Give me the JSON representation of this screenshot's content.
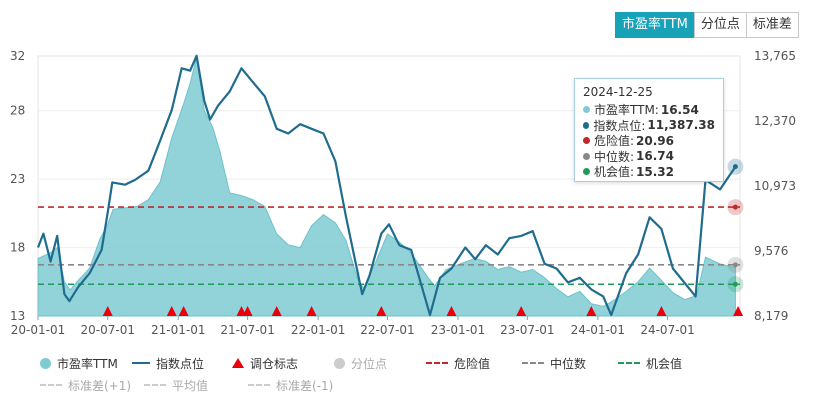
{
  "tabs": [
    {
      "label": "市盈率TTM",
      "active": true
    },
    {
      "label": "分位点",
      "active": false
    },
    {
      "label": "标准差",
      "active": false
    }
  ],
  "colors": {
    "pe_area": "#7fcbd4",
    "index_line": "#1f6c8e",
    "danger": "#c0282d",
    "median": "#888888",
    "opportunity": "#1e9b5a",
    "marker": "#e8000b",
    "tab_active": "#17a2b8"
  },
  "chart_data": {
    "type": "area",
    "y_left": {
      "ticks": [
        "32",
        "28",
        "23",
        "18",
        "13"
      ],
      "min": 13,
      "max": 32
    },
    "y_right": {
      "ticks": [
        "13,765",
        "12,370",
        "10,973",
        "9,576",
        "8,179"
      ],
      "min": 8179,
      "max": 13765
    },
    "x_ticks": [
      "20-01-01",
      "20-07-01",
      "21-01-01",
      "21-07-01",
      "22-01-01",
      "22-07-01",
      "23-01-01",
      "23-07-01",
      "24-01-01",
      "24-07-01"
    ],
    "x_start": "2020-01-01",
    "x_end": "2025-01-06",
    "reference_lines": {
      "danger": 20.96,
      "median": 16.74,
      "opportunity": 15.32
    },
    "pe_series": [
      [
        "2020-01-01",
        17.2
      ],
      [
        "2020-02-01",
        17.6
      ],
      [
        "2020-02-20",
        18.0
      ],
      [
        "2020-03-10",
        15.5
      ],
      [
        "2020-03-25",
        14.9
      ],
      [
        "2020-04-15",
        15.6
      ],
      [
        "2020-05-15",
        16.5
      ],
      [
        "2020-06-10",
        18.6
      ],
      [
        "2020-07-01",
        19.7
      ],
      [
        "2020-07-15",
        20.8
      ],
      [
        "2020-08-15",
        20.9
      ],
      [
        "2020-09-15",
        21.0
      ],
      [
        "2020-10-15",
        21.5
      ],
      [
        "2020-11-15",
        22.8
      ],
      [
        "2020-12-15",
        26.0
      ],
      [
        "2021-01-15",
        28.5
      ],
      [
        "2021-02-01",
        30.0
      ],
      [
        "2021-02-18",
        31.9
      ],
      [
        "2021-03-10",
        28.0
      ],
      [
        "2021-04-01",
        26.8
      ],
      [
        "2021-04-20",
        25.0
      ],
      [
        "2021-05-15",
        22.0
      ],
      [
        "2021-06-15",
        21.8
      ],
      [
        "2021-07-15",
        21.5
      ],
      [
        "2021-08-15",
        21.0
      ],
      [
        "2021-09-15",
        19.0
      ],
      [
        "2021-10-15",
        18.2
      ],
      [
        "2021-11-15",
        18.0
      ],
      [
        "2021-12-15",
        19.6
      ],
      [
        "2022-01-15",
        20.4
      ],
      [
        "2022-02-15",
        19.8
      ],
      [
        "2022-03-15",
        18.5
      ],
      [
        "2022-04-15",
        15.6
      ],
      [
        "2022-05-01",
        15.0
      ],
      [
        "2022-06-01",
        17.0
      ],
      [
        "2022-07-01",
        19.0
      ],
      [
        "2022-08-01",
        18.4
      ],
      [
        "2022-09-01",
        17.6
      ],
      [
        "2022-10-15",
        15.8
      ],
      [
        "2022-11-01",
        15.2
      ],
      [
        "2022-12-01",
        16.4
      ],
      [
        "2023-01-15",
        16.9
      ],
      [
        "2023-02-15",
        17.2
      ],
      [
        "2023-03-15",
        17.0
      ],
      [
        "2023-04-15",
        16.4
      ],
      [
        "2023-05-15",
        16.6
      ],
      [
        "2023-06-15",
        16.2
      ],
      [
        "2023-07-15",
        16.4
      ],
      [
        "2023-08-15",
        15.8
      ],
      [
        "2023-09-15",
        15.0
      ],
      [
        "2023-10-15",
        14.4
      ],
      [
        "2023-11-15",
        14.8
      ],
      [
        "2023-12-15",
        13.9
      ],
      [
        "2024-01-15",
        13.7
      ],
      [
        "2024-02-15",
        14.2
      ],
      [
        "2024-03-15",
        14.8
      ],
      [
        "2024-04-15",
        15.5
      ],
      [
        "2024-05-15",
        16.5
      ],
      [
        "2024-06-15",
        15.6
      ],
      [
        "2024-07-15",
        14.7
      ],
      [
        "2024-08-15",
        14.2
      ],
      [
        "2024-09-15",
        14.5
      ],
      [
        "2024-10-08",
        17.3
      ],
      [
        "2024-11-15",
        16.8
      ],
      [
        "2024-12-25",
        16.54
      ]
    ],
    "index_series": [
      [
        "2020-01-01",
        9650
      ],
      [
        "2020-01-15",
        9950
      ],
      [
        "2020-02-03",
        9350
      ],
      [
        "2020-02-20",
        9900
      ],
      [
        "2020-03-10",
        8650
      ],
      [
        "2020-03-23",
        8500
      ],
      [
        "2020-04-15",
        8800
      ],
      [
        "2020-05-15",
        9100
      ],
      [
        "2020-06-15",
        9600
      ],
      [
        "2020-07-01",
        10400
      ],
      [
        "2020-07-13",
        11050
      ],
      [
        "2020-08-15",
        11000
      ],
      [
        "2020-09-10",
        11100
      ],
      [
        "2020-10-15",
        11300
      ],
      [
        "2020-11-15",
        11950
      ],
      [
        "2020-12-15",
        12600
      ],
      [
        "2021-01-10",
        13500
      ],
      [
        "2021-02-01",
        13450
      ],
      [
        "2021-02-18",
        13770
      ],
      [
        "2021-03-10",
        12800
      ],
      [
        "2021-03-25",
        12400
      ],
      [
        "2021-04-15",
        12700
      ],
      [
        "2021-05-15",
        13000
      ],
      [
        "2021-06-15",
        13500
      ],
      [
        "2021-07-15",
        13200
      ],
      [
        "2021-08-15",
        12900
      ],
      [
        "2021-09-15",
        12200
      ],
      [
        "2021-10-15",
        12100
      ],
      [
        "2021-11-15",
        12300
      ],
      [
        "2021-12-15",
        12200
      ],
      [
        "2022-01-15",
        12100
      ],
      [
        "2022-02-15",
        11500
      ],
      [
        "2022-03-15",
        10300
      ],
      [
        "2022-04-26",
        8650
      ],
      [
        "2022-05-15",
        9050
      ],
      [
        "2022-06-15",
        9950
      ],
      [
        "2022-07-05",
        10150
      ],
      [
        "2022-08-01",
        9700
      ],
      [
        "2022-09-01",
        9600
      ],
      [
        "2022-10-20",
        8200
      ],
      [
        "2022-11-15",
        9000
      ],
      [
        "2022-12-15",
        9200
      ],
      [
        "2023-01-20",
        9650
      ],
      [
        "2023-02-15",
        9400
      ],
      [
        "2023-03-15",
        9700
      ],
      [
        "2023-04-15",
        9500
      ],
      [
        "2023-05-15",
        9850
      ],
      [
        "2023-06-15",
        9900
      ],
      [
        "2023-07-15",
        10000
      ],
      [
        "2023-08-15",
        9300
      ],
      [
        "2023-09-15",
        9200
      ],
      [
        "2023-10-15",
        8900
      ],
      [
        "2023-11-15",
        9000
      ],
      [
        "2023-12-15",
        8750
      ],
      [
        "2024-01-15",
        8600
      ],
      [
        "2024-02-05",
        8200
      ],
      [
        "2024-03-15",
        9100
      ],
      [
        "2024-04-15",
        9500
      ],
      [
        "2024-05-15",
        10300
      ],
      [
        "2024-06-15",
        10050
      ],
      [
        "2024-07-15",
        9200
      ],
      [
        "2024-09-12",
        8600
      ],
      [
        "2024-10-08",
        11100
      ],
      [
        "2024-11-15",
        10900
      ],
      [
        "2024-12-25",
        11387.38
      ]
    ],
    "adjust_markers": [
      "2020-07-01",
      "2020-12-15",
      "2021-01-15",
      "2021-06-15",
      "2021-07-01",
      "2021-09-15",
      "2021-12-15",
      "2022-06-15",
      "2022-12-15",
      "2023-06-15",
      "2023-12-15",
      "2024-06-15",
      "2025-01-01"
    ],
    "legend": {
      "row1": [
        "市盈率TTM",
        "指数点位",
        "调仓标志",
        "分位点",
        "危险值",
        "中位数",
        "机会值"
      ],
      "row2": [
        "标准差(+1)",
        "平均值",
        "标准差(-1)"
      ]
    }
  },
  "tooltip": {
    "date": "2024-12-25",
    "rows": [
      {
        "label": "市盈率TTM:",
        "value": "16.54",
        "color": "#7fcbd4"
      },
      {
        "label": "指数点位:",
        "value": "11,387.38",
        "color": "#1f6c8e"
      },
      {
        "label": "危险值:",
        "value": "20.96",
        "color": "#c0282d"
      },
      {
        "label": "中位数:",
        "value": "16.74",
        "color": "#888888"
      },
      {
        "label": "机会值:",
        "value": "15.32",
        "color": "#1e9b5a"
      }
    ]
  }
}
